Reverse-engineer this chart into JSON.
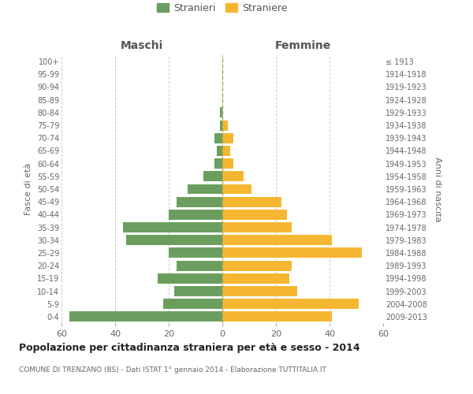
{
  "age_groups": [
    "0-4",
    "5-9",
    "10-14",
    "15-19",
    "20-24",
    "25-29",
    "30-34",
    "35-39",
    "40-44",
    "45-49",
    "50-54",
    "55-59",
    "60-64",
    "65-69",
    "70-74",
    "75-79",
    "80-84",
    "85-89",
    "90-94",
    "95-99",
    "100+"
  ],
  "birth_years": [
    "2009-2013",
    "2004-2008",
    "1999-2003",
    "1994-1998",
    "1989-1993",
    "1984-1988",
    "1979-1983",
    "1974-1978",
    "1969-1973",
    "1964-1968",
    "1959-1963",
    "1954-1958",
    "1949-1953",
    "1944-1948",
    "1939-1943",
    "1934-1938",
    "1929-1933",
    "1924-1928",
    "1919-1923",
    "1914-1918",
    "≤ 1913"
  ],
  "maschi": [
    57,
    22,
    18,
    24,
    17,
    20,
    36,
    37,
    20,
    17,
    13,
    7,
    3,
    2,
    3,
    1,
    1,
    0,
    0,
    0,
    0
  ],
  "femmine": [
    41,
    51,
    28,
    25,
    26,
    52,
    41,
    26,
    24,
    22,
    11,
    8,
    4,
    3,
    4,
    2,
    0,
    0,
    0,
    0,
    0
  ],
  "maschi_color": "#6b9e5e",
  "femmine_color": "#f5b731",
  "background_color": "#ffffff",
  "grid_color": "#cccccc",
  "title": "Popolazione per cittadinanza straniera per età e sesso - 2014",
  "subtitle": "COMUNE DI TRENZANO (BS) - Dati ISTAT 1° gennaio 2014 - Elaborazione TUTTITALIA.IT",
  "xlabel_left": "Maschi",
  "xlabel_right": "Femmine",
  "ylabel_left": "Fasce di età",
  "ylabel_right": "Anni di nascita",
  "legend_maschi": "Stranieri",
  "legend_femmine": "Straniere",
  "xlim": 60,
  "bar_height": 0.8
}
